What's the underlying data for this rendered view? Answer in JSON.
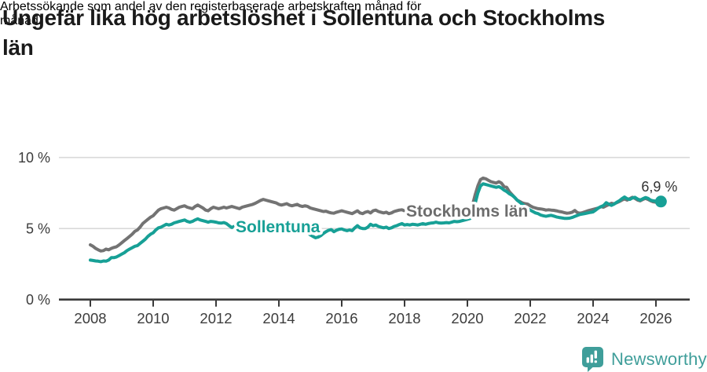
{
  "header": {
    "title": "Ungefär lika hög arbetslöshet i Sollentuna och Stockholms län",
    "title_lines": [
      "Ungefär lika hög arbetslöshet i Sollentuna och Stockholms",
      "län"
    ],
    "subtitle": "Arbetssökande som andel av den registerbaserade arbetskraften månad för månad.",
    "subtitle_lines": [
      "Arbetssökande som andel av den registerbaserade arbetskraften månad för",
      "månad."
    ]
  },
  "chart_data": {
    "type": "line",
    "title": "Ungefär lika hög arbetslöshet i Sollentuna och Stockholms län",
    "xlabel": "",
    "ylabel": "",
    "ylim": [
      0,
      10
    ],
    "grid": "horizontal",
    "legend_position": "inline-labels",
    "x_start": "2008-01",
    "frequency": "monthly",
    "x_ticks": [
      "2008",
      "2010",
      "2012",
      "2014",
      "2016",
      "2018",
      "2020",
      "2022",
      "2024",
      "2026"
    ],
    "y_ticks": [
      {
        "value": 0,
        "label": "0 %"
      },
      {
        "value": 5,
        "label": "5 %"
      },
      {
        "value": 10,
        "label": "10 %"
      }
    ],
    "annotations": {
      "end_label": "6,9 %"
    },
    "colors": {
      "axis": "#3a3a3a",
      "grid": "#d9d9d9",
      "tick_text": "#3c3c3c"
    },
    "series": [
      {
        "name": "Stockholms län",
        "color": "#737373",
        "label_color": "#6d6d6d",
        "values": [
          3.85,
          3.75,
          3.6,
          3.5,
          3.42,
          3.45,
          3.55,
          3.5,
          3.6,
          3.67,
          3.72,
          3.85,
          4.0,
          4.15,
          4.3,
          4.45,
          4.6,
          4.8,
          4.9,
          5.1,
          5.35,
          5.5,
          5.65,
          5.8,
          5.9,
          6.1,
          6.3,
          6.4,
          6.45,
          6.5,
          6.45,
          6.35,
          6.3,
          6.4,
          6.5,
          6.55,
          6.6,
          6.5,
          6.45,
          6.4,
          6.55,
          6.65,
          6.55,
          6.45,
          6.3,
          6.25,
          6.4,
          6.5,
          6.45,
          6.4,
          6.45,
          6.5,
          6.45,
          6.5,
          6.55,
          6.5,
          6.45,
          6.4,
          6.5,
          6.55,
          6.6,
          6.65,
          6.7,
          6.78,
          6.88,
          6.98,
          7.05,
          7.0,
          6.95,
          6.9,
          6.85,
          6.8,
          6.7,
          6.65,
          6.7,
          6.75,
          6.65,
          6.6,
          6.65,
          6.7,
          6.6,
          6.55,
          6.6,
          6.55,
          6.45,
          6.4,
          6.35,
          6.3,
          6.25,
          6.2,
          6.22,
          6.15,
          6.1,
          6.08,
          6.15,
          6.2,
          6.25,
          6.2,
          6.15,
          6.1,
          6.05,
          6.15,
          6.25,
          6.1,
          6.05,
          6.15,
          6.2,
          6.1,
          6.25,
          6.3,
          6.2,
          6.15,
          6.1,
          6.15,
          6.05,
          6.1,
          6.2,
          6.25,
          6.3,
          6.32,
          6.25,
          6.2,
          6.18,
          6.2,
          6.15,
          6.12,
          6.15,
          6.18,
          6.2,
          6.15,
          6.18,
          6.2,
          6.15,
          6.12,
          6.1,
          6.12,
          6.15,
          6.18,
          6.2,
          6.22,
          6.25,
          6.28,
          6.3,
          6.35,
          6.4,
          6.45,
          6.7,
          7.4,
          8.0,
          8.45,
          8.55,
          8.5,
          8.4,
          8.3,
          8.25,
          8.2,
          8.3,
          8.2,
          7.95,
          7.9,
          7.6,
          7.4,
          7.2,
          7.0,
          6.9,
          6.8,
          6.75,
          6.72,
          6.6,
          6.5,
          6.45,
          6.4,
          6.38,
          6.35,
          6.3,
          6.32,
          6.3,
          6.28,
          6.25,
          6.2,
          6.17,
          6.12,
          6.08,
          6.1,
          6.15,
          6.27,
          6.12,
          6.08,
          6.12,
          6.18,
          6.25,
          6.3,
          6.35,
          6.4,
          6.45,
          6.54,
          6.5,
          6.6,
          6.68,
          6.78,
          6.74,
          6.82,
          6.9,
          7.0,
          7.09,
          7.0,
          7.1,
          7.2,
          7.12,
          7.0,
          6.95,
          7.05,
          7.12,
          7.05,
          6.95,
          6.88,
          6.85,
          6.88
        ]
      },
      {
        "name": "Sollentuna",
        "color": "#17a096",
        "label_color": "#17a096",
        "end_dot": true,
        "values": [
          2.78,
          2.75,
          2.72,
          2.7,
          2.67,
          2.72,
          2.7,
          2.78,
          2.95,
          2.95,
          3.0,
          3.1,
          3.2,
          3.3,
          3.45,
          3.55,
          3.65,
          3.75,
          3.8,
          3.95,
          4.1,
          4.25,
          4.45,
          4.6,
          4.7,
          4.9,
          5.05,
          5.1,
          5.2,
          5.3,
          5.25,
          5.3,
          5.4,
          5.45,
          5.5,
          5.55,
          5.6,
          5.5,
          5.45,
          5.5,
          5.6,
          5.68,
          5.6,
          5.55,
          5.5,
          5.45,
          5.5,
          5.48,
          5.45,
          5.4,
          5.38,
          5.42,
          5.35,
          5.2,
          5.07,
          5.15,
          5.25,
          5.3,
          5.28,
          5.33,
          5.35,
          5.3,
          5.32,
          5.3,
          5.28,
          5.3,
          5.35,
          5.3,
          5.25,
          5.2,
          5.18,
          5.15,
          5.1,
          5.08,
          5.1,
          5.05,
          5.0,
          4.95,
          4.98,
          4.9,
          4.85,
          4.8,
          4.75,
          4.7,
          4.55,
          4.45,
          4.35,
          4.4,
          4.5,
          4.65,
          4.78,
          4.88,
          4.92,
          4.78,
          4.88,
          4.95,
          4.97,
          4.9,
          4.85,
          4.9,
          4.85,
          5.05,
          5.2,
          5.05,
          5.0,
          5.0,
          5.1,
          5.3,
          5.2,
          5.25,
          5.15,
          5.1,
          5.05,
          5.1,
          5.0,
          5.05,
          5.15,
          5.2,
          5.28,
          5.35,
          5.25,
          5.28,
          5.25,
          5.3,
          5.28,
          5.25,
          5.3,
          5.35,
          5.3,
          5.35,
          5.38,
          5.4,
          5.45,
          5.4,
          5.38,
          5.4,
          5.42,
          5.4,
          5.45,
          5.5,
          5.48,
          5.5,
          5.55,
          5.6,
          5.65,
          5.7,
          6.0,
          6.8,
          7.5,
          8.0,
          8.15,
          8.1,
          8.05,
          8.0,
          7.95,
          7.9,
          7.95,
          7.85,
          7.7,
          7.6,
          7.45,
          7.35,
          7.2,
          7.0,
          6.85,
          6.7,
          6.55,
          6.4,
          6.3,
          6.2,
          6.1,
          6.05,
          5.95,
          5.9,
          5.86,
          5.9,
          5.93,
          5.88,
          5.82,
          5.78,
          5.75,
          5.72,
          5.71,
          5.73,
          5.78,
          5.85,
          5.92,
          5.99,
          6.02,
          6.06,
          6.1,
          6.14,
          6.17,
          6.3,
          6.45,
          6.54,
          6.62,
          6.82,
          6.72,
          6.63,
          6.72,
          6.85,
          6.95,
          7.1,
          7.22,
          7.1,
          7.05,
          7.15,
          7.2,
          7.08,
          7.0,
          7.1,
          7.18,
          7.12,
          7.0,
          6.95,
          6.92,
          6.9
        ]
      }
    ]
  },
  "footer": {
    "brand": "Newsworthy",
    "brand_color": "#3f9e9a",
    "logo_icon": "bar-chart-speech-bubble"
  }
}
